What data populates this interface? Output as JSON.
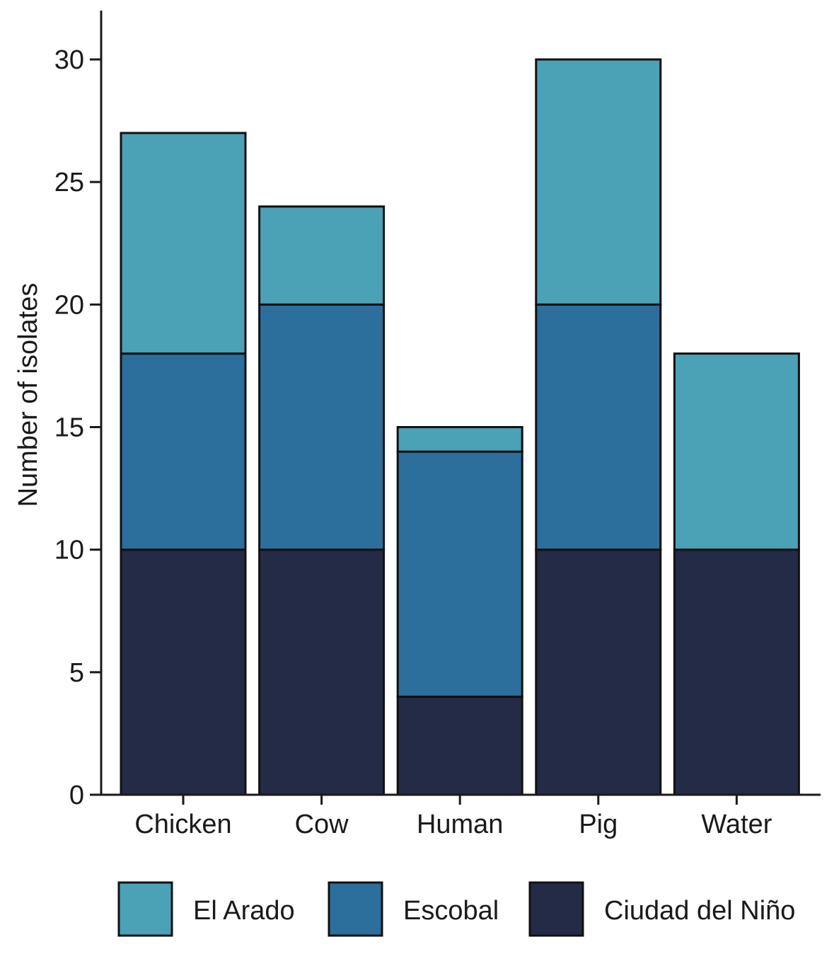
{
  "chart_data": {
    "type": "bar",
    "stacked": true,
    "title": "",
    "xlabel": "",
    "ylabel": "Number of isolates",
    "ylim": [
      0,
      32
    ],
    "yticks": [
      0,
      5,
      10,
      15,
      20,
      25,
      30
    ],
    "categories": [
      "Chicken",
      "Cow",
      "Human",
      "Pig",
      "Water"
    ],
    "series": [
      {
        "name": "Ciudad del Niño",
        "color": "#242b47",
        "values": [
          10,
          10,
          4,
          10,
          10
        ]
      },
      {
        "name": "Escobal",
        "color": "#2c6e9c",
        "values": [
          8,
          10,
          10,
          10,
          0
        ]
      },
      {
        "name": "El Arado",
        "color": "#4ba1b6",
        "values": [
          9,
          4,
          1,
          10,
          8
        ]
      }
    ],
    "legend": {
      "position": "bottom",
      "order": [
        "El Arado",
        "Escobal",
        "Ciudad del Niño"
      ]
    },
    "grid": false
  }
}
